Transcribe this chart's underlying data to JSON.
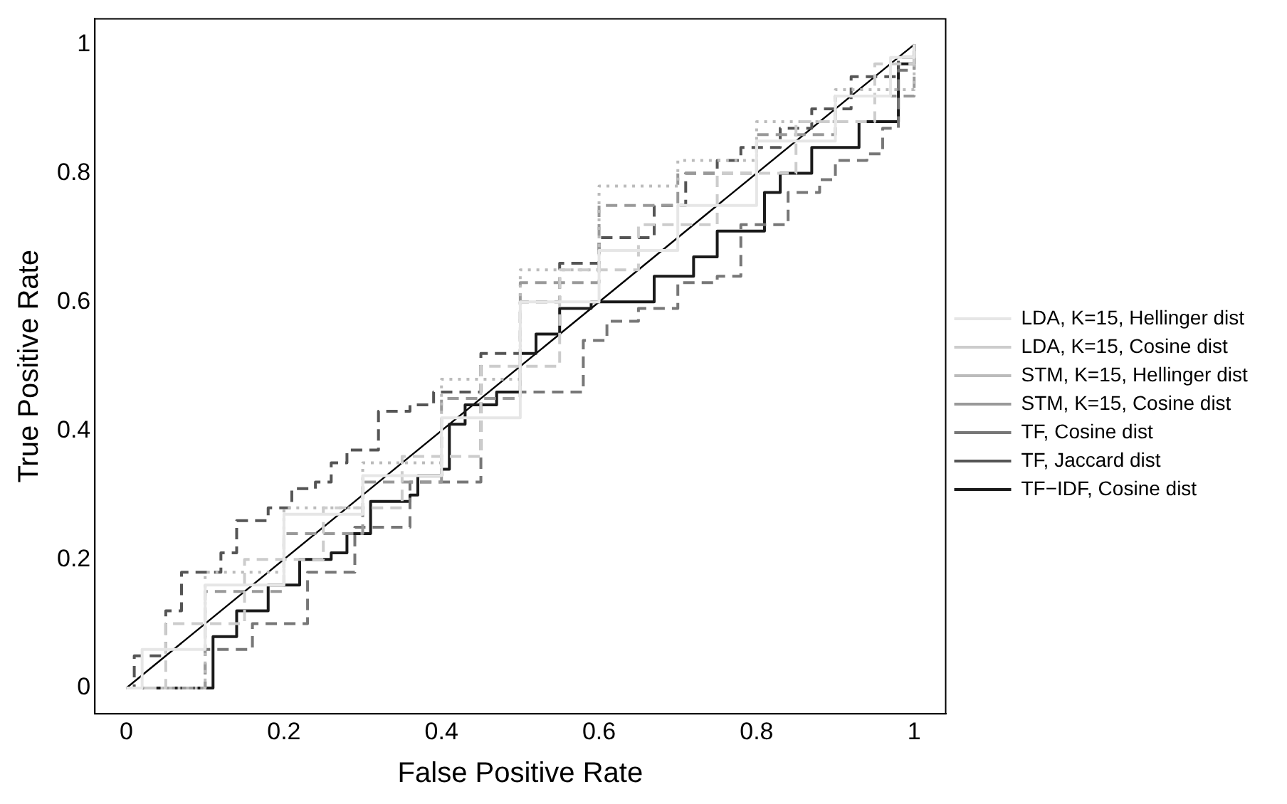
{
  "chart_data": {
    "type": "step",
    "xlabel": "False Positive Rate",
    "ylabel": "True Positive Rate",
    "xlim": [
      -0.04,
      1.04
    ],
    "ylim": [
      -0.04,
      1.04
    ],
    "xticks": [
      0,
      0.2,
      0.4,
      0.6,
      0.8,
      1
    ],
    "yticks": [
      0,
      0.2,
      0.4,
      0.6,
      0.8,
      1
    ],
    "grid": false,
    "legend": "right",
    "series": [
      {
        "name": "LDA, K=15, Hellinger dist",
        "color": "#e6e6e6",
        "line_style": "solid",
        "x": [
          0,
          0.02,
          0.1,
          0.2,
          0.3,
          0.4,
          0.5,
          0.6,
          0.7,
          0.8,
          0.9,
          0.97,
          1
        ],
        "values": [
          0,
          0.06,
          0.16,
          0.27,
          0.33,
          0.42,
          0.6,
          0.68,
          0.75,
          0.85,
          0.92,
          0.98,
          1
        ]
      },
      {
        "name": "LDA, K=15, Cosine dist",
        "color": "#cccccc",
        "line_style": "dashed",
        "x": [
          0,
          0.05,
          0.15,
          0.25,
          0.35,
          0.45,
          0.55,
          0.65,
          0.75,
          0.85,
          0.95,
          1
        ],
        "values": [
          0,
          0.1,
          0.2,
          0.28,
          0.36,
          0.5,
          0.65,
          0.72,
          0.8,
          0.88,
          0.97,
          1
        ]
      },
      {
        "name": "STM, K=15, Hellinger dist",
        "color": "#bbbbbb",
        "line_style": "dotted",
        "x": [
          0,
          0.1,
          0.2,
          0.3,
          0.4,
          0.5,
          0.6,
          0.7,
          0.8,
          0.9,
          1
        ],
        "values": [
          0,
          0.18,
          0.28,
          0.35,
          0.48,
          0.65,
          0.78,
          0.82,
          0.88,
          0.93,
          1
        ]
      },
      {
        "name": "STM, K=15, Cosine dist",
        "color": "#999999",
        "line_style": "dashed",
        "x": [
          0,
          0.1,
          0.2,
          0.3,
          0.4,
          0.5,
          0.6,
          0.7,
          0.8,
          0.9,
          1
        ],
        "values": [
          0,
          0.15,
          0.24,
          0.32,
          0.45,
          0.63,
          0.75,
          0.8,
          0.86,
          0.92,
          1
        ]
      },
      {
        "name": "TF, Cosine dist",
        "color": "#777777",
        "line_style": "dashed",
        "x": [
          0,
          0.1,
          0.16,
          0.23,
          0.29,
          0.36,
          0.45,
          0.5,
          0.58,
          0.61,
          0.65,
          0.7,
          0.75,
          0.78,
          0.84,
          0.88,
          0.9,
          0.94,
          0.96,
          0.98,
          1
        ],
        "values": [
          0,
          0.06,
          0.1,
          0.18,
          0.25,
          0.32,
          0.45,
          0.46,
          0.54,
          0.57,
          0.59,
          0.63,
          0.64,
          0.72,
          0.77,
          0.79,
          0.82,
          0.83,
          0.87,
          0.96,
          1
        ]
      },
      {
        "name": "TF, Jaccard dist",
        "color": "#555555",
        "line_style": "dashed",
        "x": [
          0,
          0.01,
          0.05,
          0.07,
          0.12,
          0.14,
          0.18,
          0.21,
          0.24,
          0.26,
          0.28,
          0.32,
          0.36,
          0.39,
          0.45,
          0.5,
          0.55,
          0.6,
          0.67,
          0.7,
          0.71,
          0.75,
          0.78,
          0.83,
          0.87,
          0.92,
          0.98,
          1
        ],
        "values": [
          0,
          0.05,
          0.12,
          0.18,
          0.21,
          0.26,
          0.28,
          0.31,
          0.32,
          0.35,
          0.37,
          0.43,
          0.44,
          0.46,
          0.52,
          0.6,
          0.66,
          0.7,
          0.75,
          0.75,
          0.8,
          0.82,
          0.84,
          0.87,
          0.9,
          0.95,
          0.98,
          1
        ]
      },
      {
        "name": "TF−IDF, Cosine dist",
        "color": "#1a1a1a",
        "line_style": "solid",
        "x": [
          0,
          0.11,
          0.14,
          0.18,
          0.22,
          0.26,
          0.28,
          0.31,
          0.36,
          0.37,
          0.4,
          0.41,
          0.43,
          0.47,
          0.5,
          0.52,
          0.55,
          0.59,
          0.65,
          0.67,
          0.71,
          0.72,
          0.75,
          0.81,
          0.81,
          0.83,
          0.86,
          0.87,
          0.91,
          0.93,
          0.97,
          0.98,
          1
        ],
        "values": [
          0,
          0.08,
          0.12,
          0.16,
          0.2,
          0.21,
          0.24,
          0.29,
          0.3,
          0.33,
          0.34,
          0.41,
          0.44,
          0.46,
          0.52,
          0.55,
          0.59,
          0.6,
          0.6,
          0.64,
          0.64,
          0.67,
          0.71,
          0.71,
          0.77,
          0.8,
          0.8,
          0.84,
          0.84,
          0.88,
          0.88,
          0.97,
          1
        ]
      },
      {
        "type": "line",
        "color": "#000000",
        "line_style": "solid",
        "x": [
          0,
          1
        ],
        "values": [
          0,
          1
        ]
      }
    ]
  }
}
